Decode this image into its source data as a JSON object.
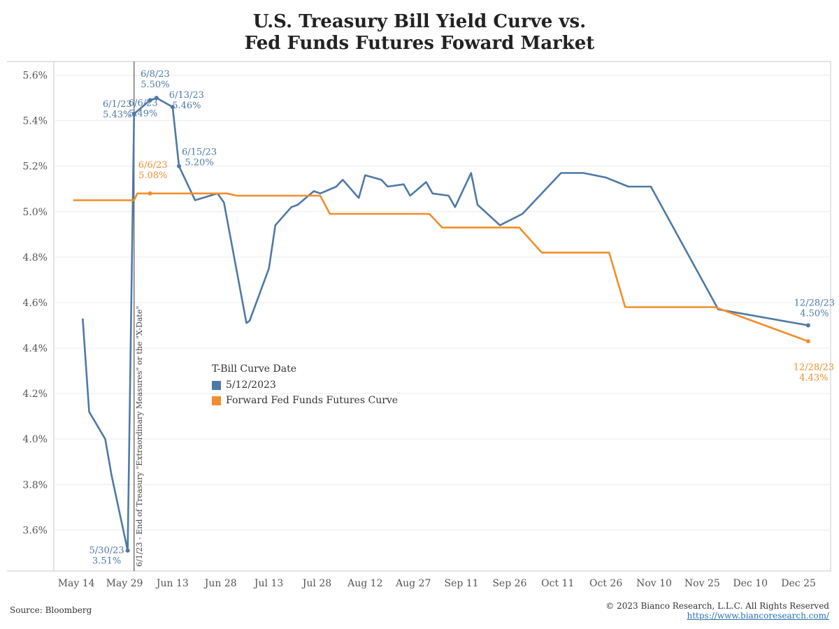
{
  "title": {
    "line1": "U.S. Treasury Bill Yield Curve vs.",
    "line2": "Fed Funds Futures Foward Market"
  },
  "source": "Source: Bloomberg",
  "copyright": "© 2023 Bianco Research, L.L.C. All Rights Reserved",
  "website": "https://www.biancoresearch.com/",
  "legend": {
    "title": "T-Bill Curve Date",
    "items": [
      {
        "label": "5/12/2023",
        "color": "#4e79a7"
      },
      {
        "label": "Forward Fed Funds Futures Curve",
        "color": "#f28e2b"
      }
    ]
  },
  "chart_data": {
    "type": "line",
    "x_type": "date",
    "xlim": [
      "2023-05-07",
      "2024-01-04"
    ],
    "ylim": [
      3.42,
      5.66
    ],
    "y_ticks": [
      3.6,
      3.8,
      4.0,
      4.2,
      4.4,
      4.6,
      4.8,
      5.0,
      5.2,
      5.4,
      5.6
    ],
    "y_tick_labels": [
      "3.6%",
      "3.8%",
      "4.0%",
      "4.2%",
      "4.4%",
      "4.6%",
      "4.8%",
      "5.0%",
      "5.2%",
      "5.4%",
      "5.6%"
    ],
    "x_ticks": [
      "2023-05-14",
      "2023-05-29",
      "2023-06-13",
      "2023-06-28",
      "2023-07-13",
      "2023-07-28",
      "2023-08-12",
      "2023-08-27",
      "2023-09-11",
      "2023-09-26",
      "2023-10-11",
      "2023-10-26",
      "2023-11-10",
      "2023-11-25",
      "2023-12-10",
      "2023-12-25"
    ],
    "x_tick_labels": [
      "May 14",
      "May 29",
      "Jun 13",
      "Jun 28",
      "Jul 13",
      "Jul 28",
      "Aug 12",
      "Aug 27",
      "Sep 11",
      "Sep 26",
      "Oct 11",
      "Oct 26",
      "Nov 10",
      "Nov 25",
      "Dec 10",
      "Dec 25"
    ],
    "grid": "horizontal",
    "vline": {
      "x": "2023-06-01",
      "label": "6/1/23 - End of Treasury \"Extraordinary Measures\" or the \"X-Date\""
    },
    "series": [
      {
        "name": "5/12/2023",
        "color": "#4e79a7",
        "points": [
          [
            "2023-05-16",
            4.53
          ],
          [
            "2023-05-18",
            4.12
          ],
          [
            "2023-05-23",
            4.0
          ],
          [
            "2023-05-25",
            3.84
          ],
          [
            "2023-05-30",
            3.51
          ],
          [
            "2023-06-01",
            5.43
          ],
          [
            "2023-06-06",
            5.49
          ],
          [
            "2023-06-08",
            5.5
          ],
          [
            "2023-06-13",
            5.46
          ],
          [
            "2023-06-15",
            5.2
          ],
          [
            "2023-06-20",
            5.05
          ],
          [
            "2023-06-27",
            5.08
          ],
          [
            "2023-06-29",
            5.04
          ],
          [
            "2023-07-06",
            4.51
          ],
          [
            "2023-07-07",
            4.52
          ],
          [
            "2023-07-13",
            4.75
          ],
          [
            "2023-07-15",
            4.94
          ],
          [
            "2023-07-20",
            5.02
          ],
          [
            "2023-07-22",
            5.03
          ],
          [
            "2023-07-27",
            5.09
          ],
          [
            "2023-07-29",
            5.08
          ],
          [
            "2023-08-03",
            5.11
          ],
          [
            "2023-08-05",
            5.14
          ],
          [
            "2023-08-10",
            5.06
          ],
          [
            "2023-08-12",
            5.16
          ],
          [
            "2023-08-17",
            5.14
          ],
          [
            "2023-08-19",
            5.11
          ],
          [
            "2023-08-24",
            5.12
          ],
          [
            "2023-08-26",
            5.07
          ],
          [
            "2023-08-31",
            5.13
          ],
          [
            "2023-09-02",
            5.08
          ],
          [
            "2023-09-07",
            5.07
          ],
          [
            "2023-09-09",
            5.02
          ],
          [
            "2023-09-14",
            5.17
          ],
          [
            "2023-09-16",
            5.03
          ],
          [
            "2023-09-23",
            4.94
          ],
          [
            "2023-09-30",
            4.99
          ],
          [
            "2023-10-12",
            5.17
          ],
          [
            "2023-10-19",
            5.17
          ],
          [
            "2023-10-26",
            5.15
          ],
          [
            "2023-11-02",
            5.11
          ],
          [
            "2023-11-09",
            5.11
          ],
          [
            "2023-11-30",
            4.57
          ],
          [
            "2023-12-28",
            4.5
          ]
        ],
        "annotations": [
          {
            "x": "2023-05-30",
            "y": 3.51,
            "date": "5/30/23",
            "value": "3.51%"
          },
          {
            "x": "2023-06-01",
            "y": 5.43,
            "date": "6/1/23",
            "value": "5.43%"
          },
          {
            "x": "2023-06-06",
            "y": 5.49,
            "date": "6/6/23",
            "value": "5.49%"
          },
          {
            "x": "2023-06-08",
            "y": 5.5,
            "date": "6/8/23",
            "value": "5.50%"
          },
          {
            "x": "2023-06-13",
            "y": 5.46,
            "date": "6/13/23",
            "value": "5.46%"
          },
          {
            "x": "2023-06-15",
            "y": 5.2,
            "date": "6/15/23",
            "value": "5.20%"
          },
          {
            "x": "2023-12-28",
            "y": 4.5,
            "date": "12/28/23",
            "value": "4.50%"
          }
        ]
      },
      {
        "name": "Forward Fed Funds Futures Curve",
        "color": "#f28e2b",
        "points": [
          [
            "2023-05-13",
            5.05
          ],
          [
            "2023-06-01",
            5.05
          ],
          [
            "2023-06-02",
            5.08
          ],
          [
            "2023-06-30",
            5.08
          ],
          [
            "2023-07-03",
            5.07
          ],
          [
            "2023-07-29",
            5.07
          ],
          [
            "2023-08-01",
            4.99
          ],
          [
            "2023-09-01",
            4.99
          ],
          [
            "2023-09-05",
            4.93
          ],
          [
            "2023-09-29",
            4.93
          ],
          [
            "2023-10-06",
            4.82
          ],
          [
            "2023-10-27",
            4.82
          ],
          [
            "2023-11-01",
            4.58
          ],
          [
            "2023-11-29",
            4.58
          ],
          [
            "2023-12-28",
            4.43
          ]
        ],
        "annotations": [
          {
            "x": "2023-06-06",
            "y": 5.08,
            "date": "6/6/23",
            "value": "5.08%"
          },
          {
            "x": "2023-12-28",
            "y": 4.43,
            "date": "12/28/23",
            "value": "4.43%"
          }
        ]
      }
    ]
  }
}
